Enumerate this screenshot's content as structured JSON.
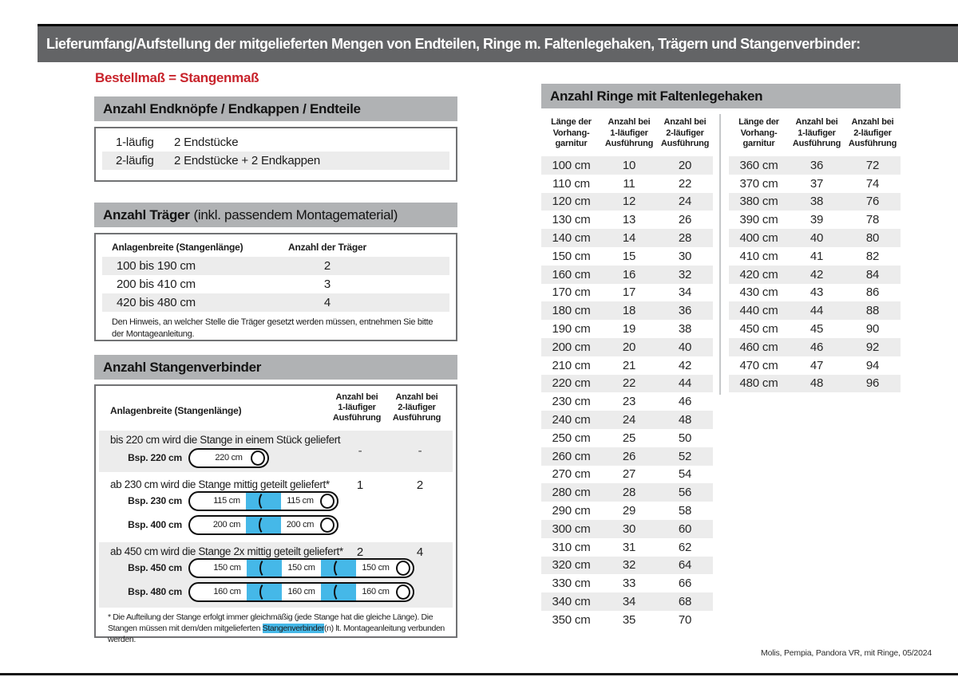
{
  "title_bar": "Lieferumfang/Aufstellung der mitgelieferten Mengen von Endteilen, Ringe m. Faltenlegehaken, Trägern und Stangenverbinder:",
  "subtitle": "Bestellmaß = Stangenmaß",
  "colors": {
    "accent_red": "#c8232b",
    "connector_blue": "#45b8e8",
    "section_header_gray": "#b0b2b4",
    "title_bar_gray": "#636466",
    "stripe_gray": "#ececec"
  },
  "endteile": {
    "header": "Anzahl Endknöpfe / Endkappen / Endteile",
    "rows": [
      {
        "label": "1-läufig",
        "value": "2 Endstücke"
      },
      {
        "label": "2-läufig",
        "value": "2 Endstücke + 2 Endkappen"
      }
    ]
  },
  "traeger": {
    "header_bold": "Anzahl Träger",
    "header_rest": "(inkl. passendem Montagematerial)",
    "col1": "Anlagenbreite (Stangenlänge)",
    "col2": "Anzahl der Träger",
    "rows": [
      {
        "range": "100 bis 190 cm",
        "count": "2"
      },
      {
        "range": "200 bis 410 cm",
        "count": "3"
      },
      {
        "range": "420 bis 480 cm",
        "count": "4"
      }
    ],
    "note": "Den Hinweis, an welcher Stelle die Träger gesetzt werden müssen, entnehmen Sie bitte der Montageanleitung."
  },
  "verbinder": {
    "header": "Anzahl Stangenverbinder",
    "col1": "Anlagenbreite (Stangenlänge)",
    "col2": [
      "Anzahl bei",
      "1-läufiger",
      "Ausführung"
    ],
    "col3": [
      "Anzahl bei",
      "2-läufiger",
      "Ausführung"
    ],
    "rows": [
      {
        "text": "bis 220 cm wird die Stange in einem Stück geliefert",
        "v1": "-",
        "v2": "-",
        "examples": [
          {
            "label": "Bsp. 220 cm",
            "segments": [
              "220 cm"
            ]
          }
        ]
      },
      {
        "text": "ab 230 cm wird die Stange mittig geteilt geliefert*",
        "v1": "1",
        "v2": "2",
        "examples": [
          {
            "label": "Bsp. 230 cm",
            "segments": [
              "115 cm",
              "115 cm"
            ]
          },
          {
            "label": "Bsp. 400 cm",
            "segments": [
              "200 cm",
              "200 cm"
            ]
          }
        ]
      },
      {
        "text": "ab 450 cm wird die Stange 2x mittig geteilt geliefert*",
        "v1": "2",
        "v2": "4",
        "examples": [
          {
            "label": "Bsp. 450 cm",
            "segments": [
              "150 cm",
              "150 cm",
              "150 cm"
            ]
          },
          {
            "label": "Bsp. 480 cm",
            "segments": [
              "160 cm",
              "160 cm",
              "160 cm"
            ]
          }
        ]
      }
    ],
    "footnote_pre": "* Die Aufteilung der Stange erfolgt immer gleichmäßig (jede Stange hat die gleiche Länge). Die Stangen müssen mit dem/den mitgelieferten ",
    "footnote_highlight": "Stangenverbinder",
    "footnote_post": "(n) lt. Montageanleitung verbunden werden."
  },
  "ringe": {
    "header": "Anzahl Ringe mit Faltenlegehaken",
    "col_headers": [
      [
        "Länge der",
        "Vorhang-",
        "garnitur"
      ],
      [
        "Anzahl bei",
        "1-läufiger",
        "Ausführung"
      ],
      [
        "Anzahl bei",
        "2-läufiger",
        "Ausführung"
      ]
    ],
    "table1": [
      [
        "100 cm",
        "10",
        "20"
      ],
      [
        "110 cm",
        "11",
        "22"
      ],
      [
        "120 cm",
        "12",
        "24"
      ],
      [
        "130 cm",
        "13",
        "26"
      ],
      [
        "140 cm",
        "14",
        "28"
      ],
      [
        "150 cm",
        "15",
        "30"
      ],
      [
        "160 cm",
        "16",
        "32"
      ],
      [
        "170 cm",
        "17",
        "34"
      ],
      [
        "180 cm",
        "18",
        "36"
      ],
      [
        "190 cm",
        "19",
        "38"
      ],
      [
        "200 cm",
        "20",
        "40"
      ],
      [
        "210 cm",
        "21",
        "42"
      ],
      [
        "220 cm",
        "22",
        "44"
      ],
      [
        "230 cm",
        "23",
        "46"
      ],
      [
        "240 cm",
        "24",
        "48"
      ],
      [
        "250 cm",
        "25",
        "50"
      ],
      [
        "260 cm",
        "26",
        "52"
      ],
      [
        "270 cm",
        "27",
        "54"
      ],
      [
        "280 cm",
        "28",
        "56"
      ],
      [
        "290 cm",
        "29",
        "58"
      ],
      [
        "300 cm",
        "30",
        "60"
      ],
      [
        "310 cm",
        "31",
        "62"
      ],
      [
        "320 cm",
        "32",
        "64"
      ],
      [
        "330 cm",
        "33",
        "66"
      ],
      [
        "340 cm",
        "34",
        "68"
      ],
      [
        "350 cm",
        "35",
        "70"
      ]
    ],
    "table2": [
      [
        "360 cm",
        "36",
        "72"
      ],
      [
        "370 cm",
        "37",
        "74"
      ],
      [
        "380 cm",
        "38",
        "76"
      ],
      [
        "390 cm",
        "39",
        "78"
      ],
      [
        "400 cm",
        "40",
        "80"
      ],
      [
        "410 cm",
        "41",
        "82"
      ],
      [
        "420 cm",
        "42",
        "84"
      ],
      [
        "430 cm",
        "43",
        "86"
      ],
      [
        "440 cm",
        "44",
        "88"
      ],
      [
        "450 cm",
        "45",
        "90"
      ],
      [
        "460 cm",
        "46",
        "92"
      ],
      [
        "470 cm",
        "47",
        "94"
      ],
      [
        "480 cm",
        "48",
        "96"
      ]
    ]
  },
  "footer": "Molis, Pempia, Pandora VR, mit Ringe, 05/2024"
}
